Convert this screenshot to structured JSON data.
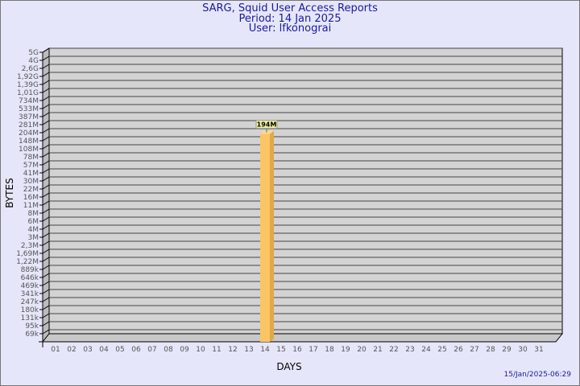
{
  "header": {
    "title": "SARG, Squid User Access Reports",
    "period": "Period: 14 Jan 2025",
    "user": "User: lfkonograi"
  },
  "timestamp": "15/Jan/2025-06:29",
  "chart_data": {
    "type": "bar",
    "xlabel": "DAYS",
    "ylabel": "BYTES",
    "y_tick_labels": [
      "5G",
      "4G",
      "2,6G",
      "1,92G",
      "1,39G",
      "1,01G",
      "734M",
      "533M",
      "387M",
      "281M",
      "204M",
      "148M",
      "108M",
      "78M",
      "57M",
      "41M",
      "30M",
      "22M",
      "16M",
      "11M",
      "8M",
      "6M",
      "4M",
      "3M",
      "2,3M",
      "1,69M",
      "1,22M",
      "889k",
      "646k",
      "469k",
      "341k",
      "247k",
      "180k",
      "131k",
      "95k",
      "69k"
    ],
    "y_scale": "log",
    "categories": [
      "01",
      "02",
      "03",
      "04",
      "05",
      "06",
      "07",
      "08",
      "09",
      "10",
      "11",
      "12",
      "13",
      "14",
      "15",
      "16",
      "17",
      "18",
      "19",
      "20",
      "21",
      "22",
      "23",
      "24",
      "25",
      "26",
      "27",
      "28",
      "29",
      "30",
      "31"
    ],
    "bars": [
      {
        "day": "14",
        "value": "194M"
      }
    ],
    "grid": true,
    "colors": {
      "bar": "#fcc463",
      "bar_side": "#e0a84c",
      "wall": "#d3d3d3",
      "label_bg": "#f0f0a0"
    }
  }
}
